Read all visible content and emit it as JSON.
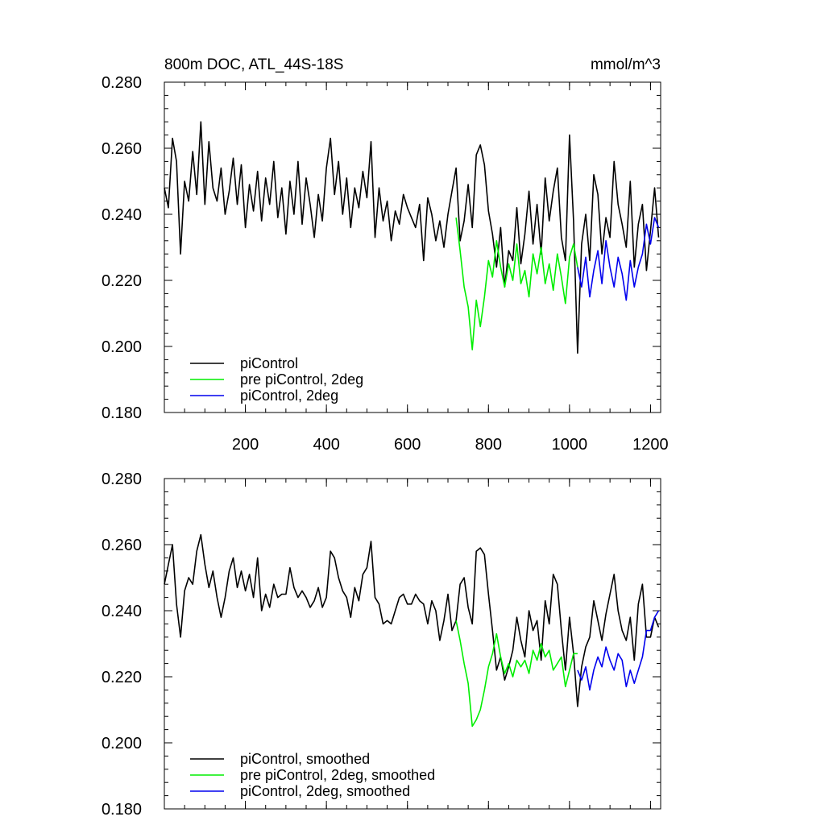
{
  "chart_data": [
    {
      "type": "line",
      "title": "800m DOC, ATL_44S-18S",
      "units": "mmol/m^3",
      "xlim": [
        0,
        1225
      ],
      "ylim": [
        0.18,
        0.28
      ],
      "xticks": [
        200,
        400,
        600,
        800,
        1000,
        1200
      ],
      "xtick_labels": [
        "200",
        "400",
        "600",
        "800",
        "1000",
        "1200"
      ],
      "yticks": [
        0.18,
        0.2,
        0.22,
        0.24,
        0.26,
        0.28
      ],
      "ytick_labels": [
        "0.180",
        "0.200",
        "0.220",
        "0.240",
        "0.260",
        "0.280"
      ],
      "grid": false,
      "legend_position": "bottom-left",
      "series": [
        {
          "name": "piControl",
          "color": "#000000",
          "x": [
            0,
            10,
            20,
            30,
            40,
            50,
            60,
            70,
            80,
            90,
            100,
            110,
            120,
            130,
            140,
            150,
            160,
            170,
            180,
            190,
            200,
            210,
            220,
            230,
            240,
            250,
            260,
            270,
            280,
            290,
            300,
            310,
            320,
            330,
            340,
            350,
            360,
            370,
            380,
            390,
            400,
            410,
            420,
            430,
            440,
            450,
            460,
            470,
            480,
            490,
            500,
            510,
            520,
            530,
            540,
            550,
            560,
            570,
            580,
            590,
            600,
            610,
            620,
            630,
            640,
            650,
            660,
            670,
            680,
            690,
            700,
            710,
            720,
            730,
            740,
            750,
            760,
            770,
            780,
            790,
            800,
            810,
            820,
            830,
            840,
            850,
            860,
            870,
            880,
            890,
            900,
            910,
            920,
            930,
            940,
            950,
            960,
            970,
            980,
            990,
            1000,
            1010,
            1020,
            1030,
            1040,
            1050,
            1060,
            1070,
            1080,
            1090,
            1100,
            1110,
            1120,
            1130,
            1140,
            1150,
            1160,
            1170,
            1180,
            1190,
            1200,
            1210,
            1220
          ],
          "values": [
            0.248,
            0.242,
            0.263,
            0.256,
            0.228,
            0.25,
            0.244,
            0.259,
            0.246,
            0.268,
            0.243,
            0.262,
            0.248,
            0.244,
            0.254,
            0.24,
            0.247,
            0.257,
            0.243,
            0.255,
            0.236,
            0.249,
            0.241,
            0.253,
            0.238,
            0.251,
            0.243,
            0.256,
            0.239,
            0.248,
            0.234,
            0.25,
            0.24,
            0.256,
            0.237,
            0.251,
            0.243,
            0.233,
            0.246,
            0.238,
            0.254,
            0.263,
            0.246,
            0.256,
            0.24,
            0.251,
            0.236,
            0.248,
            0.242,
            0.253,
            0.245,
            0.262,
            0.233,
            0.248,
            0.238,
            0.244,
            0.232,
            0.241,
            0.237,
            0.246,
            0.242,
            0.239,
            0.236,
            0.243,
            0.226,
            0.245,
            0.24,
            0.232,
            0.238,
            0.23,
            0.24,
            0.247,
            0.254,
            0.232,
            0.238,
            0.249,
            0.236,
            0.258,
            0.261,
            0.255,
            0.241,
            0.234,
            0.224,
            0.236,
            0.218,
            0.229,
            0.226,
            0.242,
            0.225,
            0.234,
            0.247,
            0.231,
            0.243,
            0.228,
            0.251,
            0.238,
            0.247,
            0.254,
            0.233,
            0.226,
            0.264,
            0.238,
            0.198,
            0.231,
            0.24,
            0.226,
            0.252,
            0.246,
            0.228,
            0.239,
            0.233,
            0.256,
            0.243,
            0.237,
            0.23,
            0.25,
            0.224,
            0.237,
            0.243,
            0.223,
            0.235,
            0.248,
            0.233
          ]
        },
        {
          "name": "pre piControl, 2deg",
          "color": "#00ee00",
          "x": [
            720,
            730,
            740,
            750,
            760,
            770,
            780,
            790,
            800,
            810,
            820,
            830,
            840,
            850,
            860,
            870,
            880,
            890,
            900,
            910,
            920,
            930,
            940,
            950,
            960,
            970,
            980,
            990,
            1000,
            1010,
            1020
          ],
          "values": [
            0.239,
            0.229,
            0.218,
            0.212,
            0.199,
            0.214,
            0.206,
            0.215,
            0.226,
            0.221,
            0.232,
            0.224,
            0.218,
            0.225,
            0.22,
            0.231,
            0.219,
            0.223,
            0.215,
            0.228,
            0.222,
            0.23,
            0.219,
            0.225,
            0.217,
            0.228,
            0.221,
            0.213,
            0.227,
            0.231,
            0.224
          ]
        },
        {
          "name": "piControl, 2deg",
          "color": "#0000ee",
          "x": [
            1020,
            1030,
            1040,
            1050,
            1060,
            1070,
            1080,
            1090,
            1100,
            1110,
            1120,
            1130,
            1140,
            1150,
            1160,
            1170,
            1180,
            1190,
            1200,
            1210,
            1220
          ],
          "values": [
            0.224,
            0.218,
            0.227,
            0.215,
            0.223,
            0.229,
            0.219,
            0.232,
            0.224,
            0.218,
            0.227,
            0.222,
            0.214,
            0.226,
            0.218,
            0.224,
            0.228,
            0.237,
            0.231,
            0.239,
            0.236
          ]
        }
      ]
    },
    {
      "type": "line",
      "xlim": [
        0,
        1225
      ],
      "ylim": [
        0.18,
        0.28
      ],
      "xticks": [
        200,
        400,
        600,
        800,
        1000,
        1200
      ],
      "yticks": [
        0.18,
        0.2,
        0.22,
        0.24,
        0.26,
        0.28
      ],
      "ytick_labels": [
        "0.180",
        "0.200",
        "0.220",
        "0.240",
        "0.260",
        "0.280"
      ],
      "grid": false,
      "legend_position": "bottom-left",
      "series": [
        {
          "name": "piControl, smoothed",
          "color": "#000000",
          "x": [
            0,
            10,
            20,
            30,
            40,
            50,
            60,
            70,
            80,
            90,
            100,
            110,
            120,
            130,
            140,
            150,
            160,
            170,
            180,
            190,
            200,
            210,
            220,
            230,
            240,
            250,
            260,
            270,
            280,
            290,
            300,
            310,
            320,
            330,
            340,
            350,
            360,
            370,
            380,
            390,
            400,
            410,
            420,
            430,
            440,
            450,
            460,
            470,
            480,
            490,
            500,
            510,
            520,
            530,
            540,
            550,
            560,
            570,
            580,
            590,
            600,
            610,
            620,
            630,
            640,
            650,
            660,
            670,
            680,
            690,
            700,
            710,
            720,
            730,
            740,
            750,
            760,
            770,
            780,
            790,
            800,
            810,
            820,
            830,
            840,
            850,
            860,
            870,
            880,
            890,
            900,
            910,
            920,
            930,
            940,
            950,
            960,
            970,
            980,
            990,
            1000,
            1010,
            1020,
            1030,
            1040,
            1050,
            1060,
            1070,
            1080,
            1090,
            1100,
            1110,
            1120,
            1130,
            1140,
            1150,
            1160,
            1170,
            1180,
            1190,
            1200,
            1210,
            1220
          ],
          "values": [
            0.248,
            0.254,
            0.26,
            0.242,
            0.232,
            0.246,
            0.25,
            0.248,
            0.258,
            0.263,
            0.254,
            0.247,
            0.252,
            0.244,
            0.238,
            0.244,
            0.252,
            0.256,
            0.247,
            0.252,
            0.246,
            0.251,
            0.244,
            0.256,
            0.24,
            0.245,
            0.241,
            0.248,
            0.244,
            0.245,
            0.245,
            0.253,
            0.247,
            0.244,
            0.246,
            0.244,
            0.241,
            0.243,
            0.247,
            0.241,
            0.244,
            0.258,
            0.256,
            0.25,
            0.246,
            0.244,
            0.238,
            0.247,
            0.243,
            0.251,
            0.253,
            0.261,
            0.244,
            0.242,
            0.236,
            0.237,
            0.236,
            0.24,
            0.244,
            0.245,
            0.242,
            0.242,
            0.245,
            0.243,
            0.242,
            0.236,
            0.243,
            0.24,
            0.231,
            0.237,
            0.245,
            0.234,
            0.237,
            0.248,
            0.25,
            0.241,
            0.236,
            0.258,
            0.259,
            0.257,
            0.245,
            0.234,
            0.222,
            0.226,
            0.219,
            0.223,
            0.228,
            0.238,
            0.231,
            0.226,
            0.24,
            0.234,
            0.237,
            0.225,
            0.243,
            0.236,
            0.251,
            0.248,
            0.234,
            0.222,
            0.238,
            0.227,
            0.211,
            0.223,
            0.229,
            0.232,
            0.243,
            0.237,
            0.231,
            0.239,
            0.245,
            0.251,
            0.24,
            0.234,
            0.231,
            0.238,
            0.225,
            0.242,
            0.248,
            0.232,
            0.232,
            0.238,
            0.235
          ]
        },
        {
          "name": "pre piControl, 2deg, smoothed",
          "color": "#00ee00",
          "x": [
            720,
            730,
            740,
            750,
            760,
            770,
            780,
            790,
            800,
            810,
            820,
            830,
            840,
            850,
            860,
            870,
            880,
            890,
            900,
            910,
            920,
            930,
            940,
            950,
            960,
            970,
            980,
            990,
            1000,
            1010,
            1020
          ],
          "values": [
            0.237,
            0.231,
            0.224,
            0.218,
            0.205,
            0.207,
            0.21,
            0.216,
            0.223,
            0.227,
            0.233,
            0.226,
            0.221,
            0.224,
            0.22,
            0.225,
            0.223,
            0.225,
            0.221,
            0.228,
            0.225,
            0.23,
            0.226,
            0.228,
            0.222,
            0.224,
            0.226,
            0.217,
            0.222,
            0.227,
            0.227
          ]
        },
        {
          "name": "piControl, 2deg, smoothed",
          "color": "#0000ee",
          "x": [
            1020,
            1030,
            1040,
            1050,
            1060,
            1070,
            1080,
            1090,
            1100,
            1110,
            1120,
            1130,
            1140,
            1150,
            1160,
            1170,
            1180,
            1190,
            1200,
            1210,
            1220
          ],
          "values": [
            0.222,
            0.219,
            0.223,
            0.216,
            0.222,
            0.226,
            0.223,
            0.229,
            0.225,
            0.222,
            0.227,
            0.225,
            0.217,
            0.222,
            0.218,
            0.222,
            0.226,
            0.234,
            0.234,
            0.238,
            0.24
          ]
        }
      ]
    }
  ]
}
